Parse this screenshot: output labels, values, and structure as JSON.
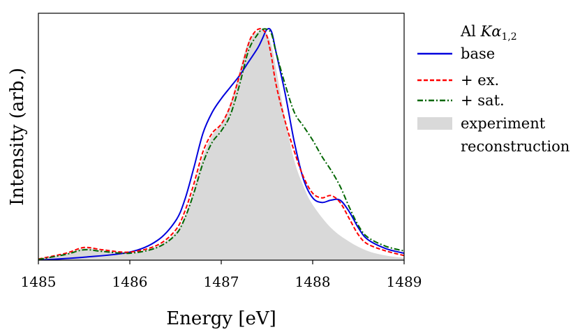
{
  "chart_data": {
    "type": "line",
    "title": "",
    "xlabel": "Energy [eV]",
    "ylabel": "Intensity (arb.)",
    "xlim": [
      1485,
      1489
    ],
    "ylim": [
      0,
      1.07
    ],
    "xticks": [
      1485,
      1486,
      1487,
      1488,
      1489
    ],
    "xtick_labels": [
      "1485",
      "1486",
      "1487",
      "1488",
      "1489"
    ],
    "yticks_shown": false,
    "legend": {
      "title_prefix": "Al ",
      "title_math": "Kα",
      "title_sub": "1,2",
      "placement": "outside-right"
    },
    "series": [
      {
        "name": "base",
        "color": "#0000dd",
        "style": "solid",
        "x": [
          1485.0,
          1485.5,
          1486.0,
          1486.3,
          1486.5,
          1486.6,
          1486.7,
          1486.8,
          1486.9,
          1487.0,
          1487.1,
          1487.2,
          1487.3,
          1487.4,
          1487.45,
          1487.5,
          1487.55,
          1487.6,
          1487.7,
          1487.8,
          1487.9,
          1488.0,
          1488.1,
          1488.2,
          1488.3,
          1488.4,
          1488.5,
          1488.6,
          1488.8,
          1489.0
        ],
        "y": [
          0.0,
          0.013,
          0.035,
          0.085,
          0.17,
          0.26,
          0.4,
          0.55,
          0.64,
          0.7,
          0.75,
          0.8,
          0.86,
          0.92,
          0.96,
          1.0,
          0.99,
          0.9,
          0.72,
          0.51,
          0.35,
          0.27,
          0.25,
          0.26,
          0.26,
          0.21,
          0.14,
          0.09,
          0.05,
          0.03
        ]
      },
      {
        "name": "+ ex.",
        "color": "#ff0000",
        "style": "dashed",
        "x": [
          1485.0,
          1485.3,
          1485.5,
          1485.7,
          1486.0,
          1486.3,
          1486.5,
          1486.6,
          1486.7,
          1486.8,
          1486.9,
          1487.0,
          1487.1,
          1487.2,
          1487.3,
          1487.35,
          1487.4,
          1487.45,
          1487.5,
          1487.55,
          1487.6,
          1487.7,
          1487.8,
          1487.9,
          1488.0,
          1488.1,
          1488.2,
          1488.3,
          1488.4,
          1488.5,
          1488.6,
          1488.8,
          1489.0
        ],
        "y": [
          0.005,
          0.03,
          0.055,
          0.045,
          0.035,
          0.065,
          0.13,
          0.21,
          0.33,
          0.47,
          0.55,
          0.59,
          0.67,
          0.8,
          0.94,
          0.98,
          1.0,
          1.0,
          0.97,
          0.88,
          0.76,
          0.6,
          0.47,
          0.36,
          0.29,
          0.27,
          0.28,
          0.25,
          0.18,
          0.11,
          0.07,
          0.04,
          0.02
        ]
      },
      {
        "name": "+ sat.",
        "color": "#006600",
        "style": "dashdot",
        "x": [
          1485.0,
          1485.3,
          1485.5,
          1485.7,
          1486.0,
          1486.3,
          1486.5,
          1486.6,
          1486.7,
          1486.8,
          1486.9,
          1487.0,
          1487.1,
          1487.2,
          1487.3,
          1487.4,
          1487.45,
          1487.5,
          1487.55,
          1487.6,
          1487.7,
          1487.8,
          1487.9,
          1488.0,
          1488.1,
          1488.2,
          1488.3,
          1488.4,
          1488.5,
          1488.6,
          1488.8,
          1489.0
        ],
        "y": [
          0.003,
          0.025,
          0.045,
          0.038,
          0.03,
          0.055,
          0.11,
          0.18,
          0.29,
          0.42,
          0.51,
          0.56,
          0.63,
          0.76,
          0.91,
          0.98,
          1.0,
          1.0,
          0.98,
          0.9,
          0.76,
          0.64,
          0.58,
          0.52,
          0.45,
          0.39,
          0.32,
          0.23,
          0.15,
          0.1,
          0.06,
          0.04
        ]
      },
      {
        "name": "experiment",
        "name_line2": "reconstruction",
        "color": "#d9d9d9",
        "style": "filled",
        "x": [
          1485.0,
          1485.3,
          1485.5,
          1485.7,
          1486.0,
          1486.3,
          1486.5,
          1486.6,
          1486.7,
          1486.8,
          1486.9,
          1487.0,
          1487.1,
          1487.2,
          1487.3,
          1487.4,
          1487.45,
          1487.5,
          1487.55,
          1487.6,
          1487.7,
          1487.8,
          1487.9,
          1488.0,
          1488.2,
          1488.4,
          1488.6,
          1488.8,
          1489.0
        ],
        "y": [
          0.005,
          0.028,
          0.052,
          0.042,
          0.03,
          0.06,
          0.12,
          0.19,
          0.31,
          0.45,
          0.54,
          0.59,
          0.68,
          0.82,
          0.95,
          0.99,
          1.0,
          0.98,
          0.93,
          0.83,
          0.61,
          0.43,
          0.32,
          0.24,
          0.14,
          0.08,
          0.04,
          0.02,
          0.01
        ]
      }
    ]
  }
}
